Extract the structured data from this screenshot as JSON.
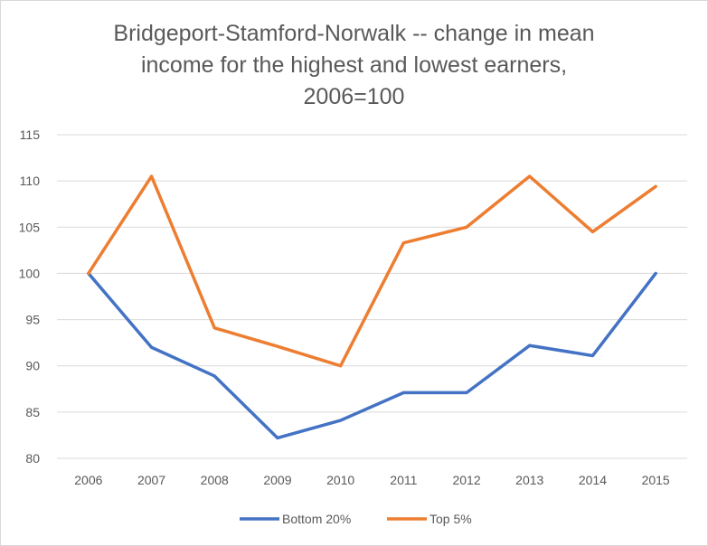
{
  "chart_data": {
    "type": "line",
    "title_lines": [
      "Bridgeport-Stamford-Norwalk -- change in mean",
      "income for the highest and lowest earners,",
      "2006=100"
    ],
    "categories": [
      "2006",
      "2007",
      "2008",
      "2009",
      "2010",
      "2011",
      "2012",
      "2013",
      "2014",
      "2015"
    ],
    "ylim": [
      80,
      115
    ],
    "yticks": [
      80,
      85,
      90,
      95,
      100,
      105,
      110,
      115
    ],
    "grid": true,
    "legend_position": "bottom",
    "series": [
      {
        "name": "Bottom 20%",
        "color": "#4472c4",
        "values": [
          100,
          92,
          88.9,
          82.2,
          84.1,
          87.1,
          87.1,
          92.2,
          91.1,
          100
        ]
      },
      {
        "name": "Top 5%",
        "color": "#ed7d31",
        "values": [
          100,
          110.5,
          94.1,
          92.1,
          90.0,
          103.3,
          105.0,
          110.5,
          104.5,
          109.4
        ]
      }
    ]
  }
}
